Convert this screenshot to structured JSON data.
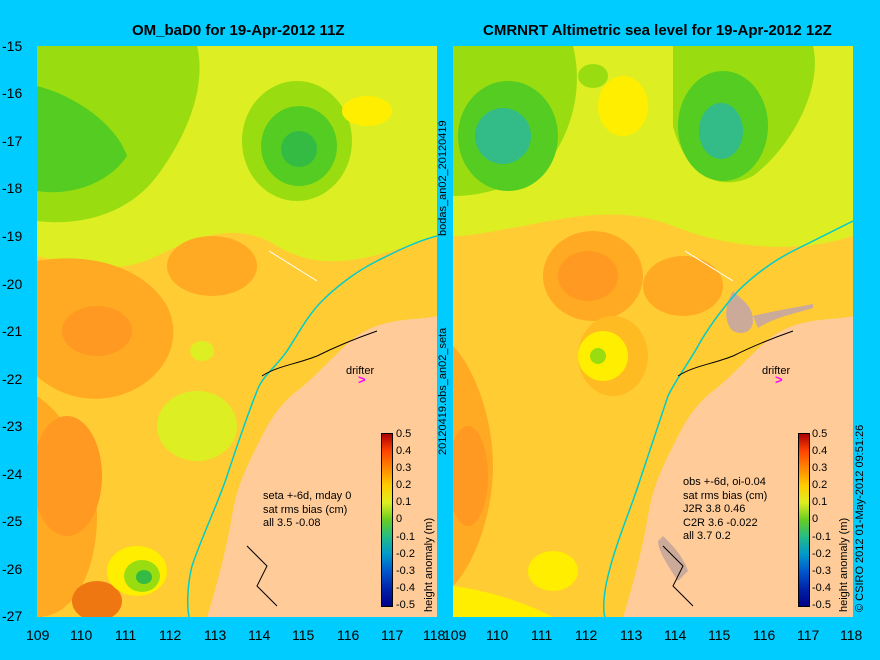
{
  "left_panel": {
    "title": "OM_baD0 for 19-Apr-2012 11Z",
    "stats": [
      "seta +-6d, mday 0",
      "sat rms bias (cm)",
      "all 3.5 -0.08"
    ],
    "drifter_label": "drifter",
    "drifter_arrow": ">"
  },
  "right_panel": {
    "title": "CMRNRT Altimetric sea level  for 19-Apr-2012 12Z",
    "stats": [
      "obs +-6d, oi-0.04",
      "sat rms bias (cm)",
      "J2R   3.8 0.46",
      "C2R   3.6 -0.022",
      "all 3.7 0.2"
    ],
    "drifter_label": "drifter",
    "drifter_arrow": ">"
  },
  "axes": {
    "y_ticks": [
      "-15",
      "-16",
      "-17",
      "-18",
      "-19",
      "-20",
      "-21",
      "-22",
      "-23",
      "-24",
      "-25",
      "-26",
      "-27"
    ],
    "x_ticks_left": [
      "109",
      "110",
      "111",
      "112",
      "113",
      "114",
      "115",
      "116",
      "117",
      "118"
    ],
    "x_ticks_right": [
      "109",
      "110",
      "111",
      "112",
      "113",
      "114",
      "115",
      "116",
      "117",
      "118"
    ]
  },
  "colorbar": {
    "title": "height anomaly (m)",
    "labels": [
      "0.5",
      "0.4",
      "0.3",
      "0.2",
      "0.1",
      "0",
      "-0.1",
      "-0.2",
      "-0.3",
      "-0.4",
      "-0.5"
    ]
  },
  "side_labels": {
    "middle_top": "bodas_an02_20120419",
    "middle_bottom": "20120419.obs_an02_seta",
    "right_edge": "© CSIRO 2012   01-May-2012 09:51:26"
  },
  "colors": {
    "background": "#00ccff",
    "land": "#ffcc99",
    "coastline": "#00cccc",
    "drifter_arrow": "#ff00ff"
  }
}
